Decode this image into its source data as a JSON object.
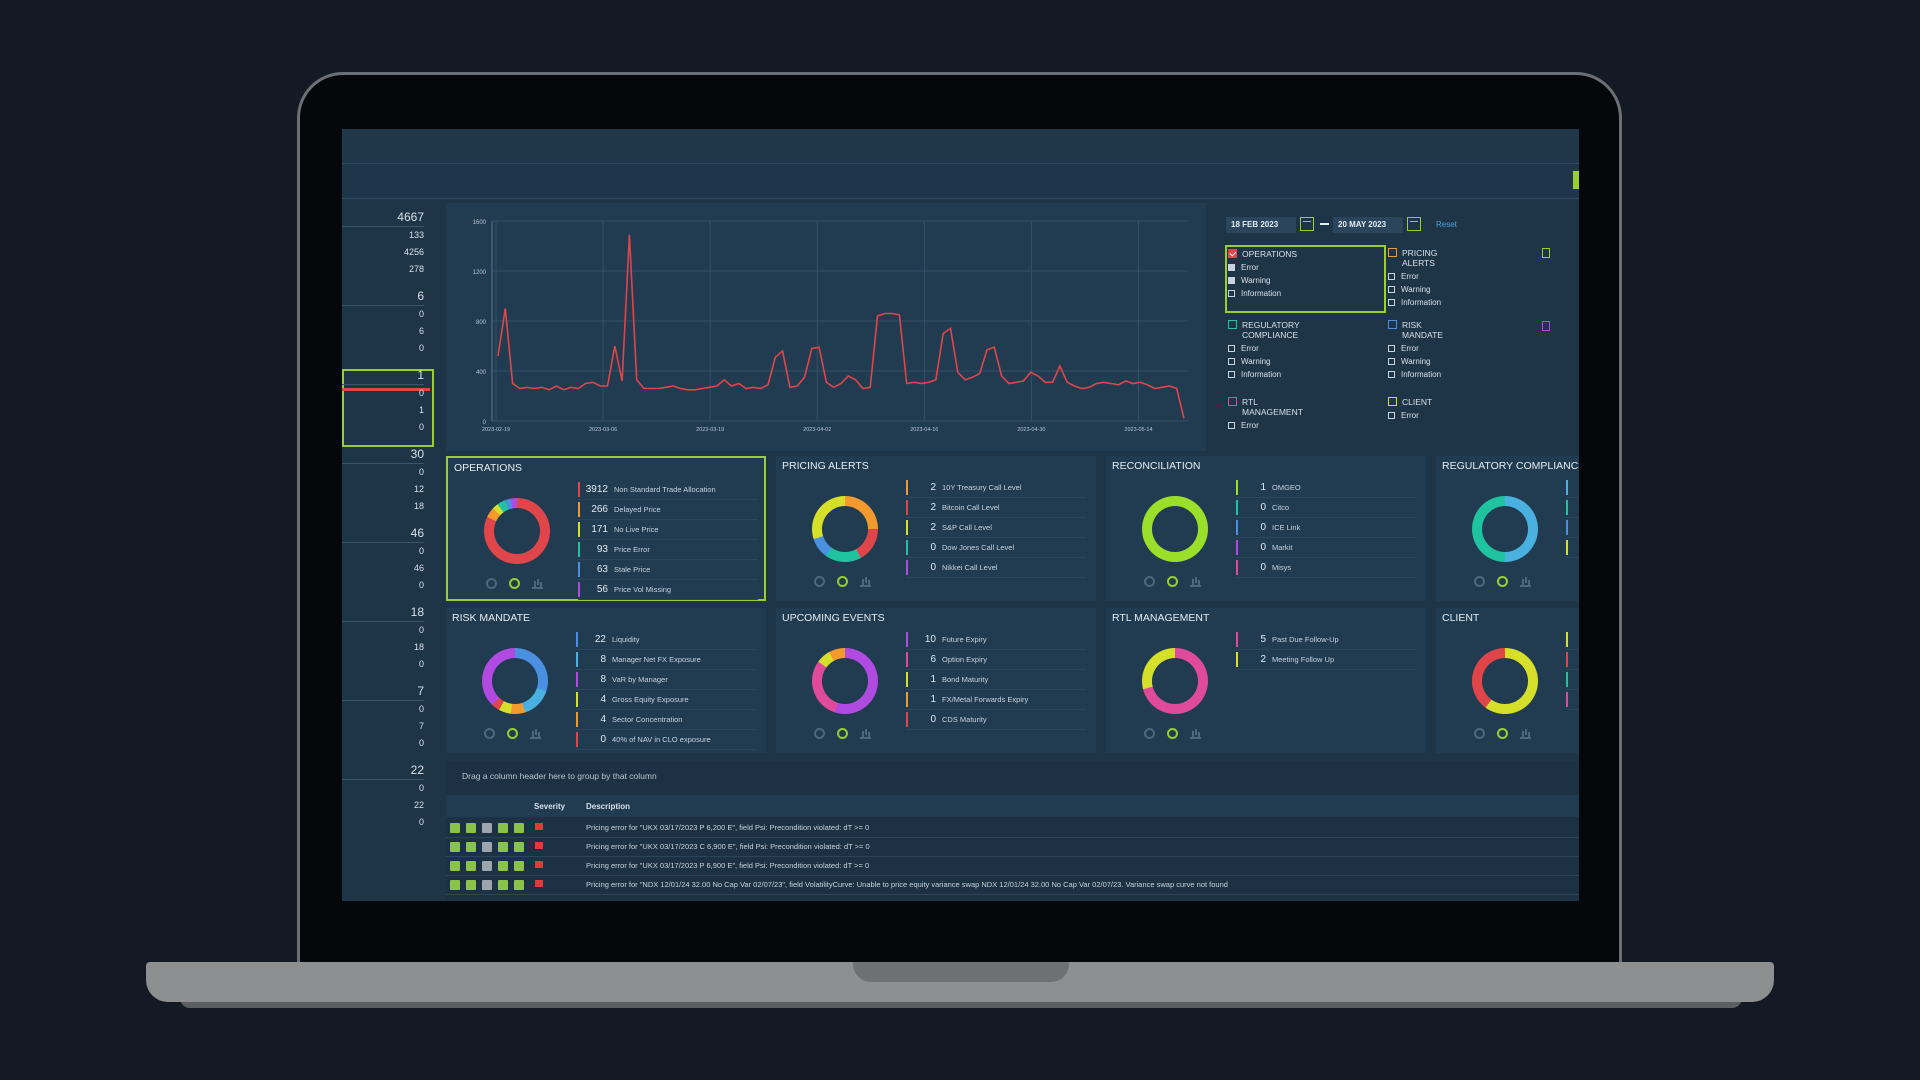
{
  "sidebar": {
    "groups": [
      {
        "head": "4667",
        "values": [
          "133",
          "4256",
          "278"
        ]
      },
      {
        "head": "6",
        "values": [
          "0",
          "6",
          "0"
        ]
      },
      {
        "head": "1",
        "values": [
          "0",
          "1",
          "0"
        ]
      },
      {
        "head": "30",
        "values": [
          "0",
          "12",
          "18"
        ]
      },
      {
        "head": "46",
        "values": [
          "0",
          "46",
          "0"
        ]
      },
      {
        "head": "18",
        "values": [
          "0",
          "18",
          "0"
        ]
      },
      {
        "head": "7",
        "values": [
          "0",
          "7",
          "0"
        ]
      },
      {
        "head": "22",
        "values": [
          "0",
          "22",
          "0"
        ]
      }
    ]
  },
  "date_range": {
    "from": "18 FEB 2023",
    "to": "20 MAY 2023",
    "reset_label": "Reset"
  },
  "chart_data": {
    "type": "line",
    "y_ticks": [
      "1600",
      "1200",
      "800",
      "400",
      "0"
    ],
    "x_ticks": [
      "2023-02-19",
      "2023-03-06",
      "2023-03-19",
      "2023-04-02",
      "2023-04-16",
      "2023-04-30",
      "2023-05-14"
    ],
    "ylim": [
      0,
      1600
    ],
    "color": "#e0454a",
    "values": [
      520,
      900,
      300,
      260,
      270,
      260,
      270,
      250,
      280,
      250,
      270,
      260,
      300,
      310,
      280,
      280,
      600,
      320,
      1490,
      330,
      260,
      260,
      260,
      270,
      280,
      260,
      250,
      250,
      260,
      270,
      280,
      330,
      280,
      300,
      260,
      270,
      260,
      290,
      510,
      560,
      270,
      280,
      350,
      580,
      590,
      310,
      270,
      300,
      360,
      330,
      260,
      270,
      840,
      860,
      860,
      850,
      300,
      310,
      300,
      310,
      330,
      700,
      740,
      390,
      330,
      350,
      380,
      570,
      590,
      360,
      300,
      310,
      320,
      390,
      360,
      310,
      310,
      440,
      310,
      280,
      260,
      270,
      300,
      310,
      300,
      290,
      320,
      300,
      310,
      290,
      260,
      270,
      280,
      260,
      20
    ]
  },
  "categories": [
    {
      "title": "OPERATIONS",
      "color": "#e0454a",
      "checked": true,
      "items": [
        {
          "label": "Error",
          "on": true
        },
        {
          "label": "Warning",
          "on": true
        },
        {
          "label": "Information",
          "on": false
        }
      ]
    },
    {
      "title": "PRICING ALERTS",
      "color": "#f29a2e",
      "checked": false,
      "items": [
        {
          "label": "Error",
          "on": false
        },
        {
          "label": "Warning",
          "on": false
        },
        {
          "label": "Information",
          "on": false
        }
      ]
    },
    {
      "title": "REGULATORY COMPLIANCE",
      "color": "#20c3a0",
      "checked": false,
      "items": [
        {
          "label": "Error",
          "on": false
        },
        {
          "label": "Warning",
          "on": false
        },
        {
          "label": "Information",
          "on": false
        }
      ]
    },
    {
      "title": "RISK MANDATE",
      "color": "#4a8fe0",
      "checked": false,
      "items": [
        {
          "label": "Error",
          "on": false
        },
        {
          "label": "Warning",
          "on": false
        },
        {
          "label": "Information",
          "on": false
        }
      ]
    },
    {
      "title": "RTL MANAGEMENT",
      "color": "#e04a9a",
      "checked": false,
      "items": [
        {
          "label": "Error",
          "on": false
        }
      ]
    },
    {
      "title": "CLIENT",
      "color": "#d6e02a",
      "checked": false,
      "items": [
        {
          "label": "Error",
          "on": false
        }
      ]
    }
  ],
  "cards": [
    {
      "title": "OPERATIONS",
      "donut": "conic-gradient(#e0454a 0 82%, #f29a2e 82% 87%, #d6e02a 87% 90%, #20c3a0 90% 94%, #4a8fe0 94% 97%, #b04ae0 97% 100%)",
      "metrics": [
        {
          "v": "3912",
          "l": "Non Standard Trade Allocation",
          "c": "#e0454a"
        },
        {
          "v": "266",
          "l": "Delayed Price",
          "c": "#f29a2e"
        },
        {
          "v": "171",
          "l": "No Live Price",
          "c": "#d6e02a"
        },
        {
          "v": "93",
          "l": "Price Error",
          "c": "#20c3a0"
        },
        {
          "v": "63",
          "l": "Stale Price",
          "c": "#4a8fe0"
        },
        {
          "v": "56",
          "l": "Price Vol Missing",
          "c": "#b04ae0"
        }
      ]
    },
    {
      "title": "PRICING ALERTS",
      "donut": "conic-gradient(#f29a2e 0 25%, #e0454a 25% 42%, #20c3a0 42% 60%, #4a8fe0 60% 70%, #d6e02a 70% 100%)",
      "metrics": [
        {
          "v": "2",
          "l": "10Y Treasury Call Level",
          "c": "#f29a2e"
        },
        {
          "v": "2",
          "l": "Bitcoin Call Level",
          "c": "#e0454a"
        },
        {
          "v": "2",
          "l": "S&P Call Level",
          "c": "#d6e02a"
        },
        {
          "v": "0",
          "l": "Dow Jones Call Level",
          "c": "#20c3a0"
        },
        {
          "v": "0",
          "l": "Nikkei Call Level",
          "c": "#b04ae0"
        }
      ]
    },
    {
      "title": "RECONCILIATION",
      "donut": "conic-gradient(#9ae02a 0 100%)",
      "metrics": [
        {
          "v": "1",
          "l": "OMGEO",
          "c": "#9ae02a"
        },
        {
          "v": "0",
          "l": "Citco",
          "c": "#20c3a0"
        },
        {
          "v": "0",
          "l": "ICE Link",
          "c": "#4a8fe0"
        },
        {
          "v": "0",
          "l": "Markit",
          "c": "#b04ae0"
        },
        {
          "v": "0",
          "l": "Misys",
          "c": "#e04a9a"
        }
      ]
    },
    {
      "title": "REGULATORY COMPLIANCE",
      "donut": "conic-gradient(#4ab0e0 0 50%, #20c3a0 50% 100%)",
      "metrics": [
        {
          "v": "",
          "l": "",
          "c": "#4ab0e0"
        },
        {
          "v": "",
          "l": "",
          "c": "#20c3a0"
        },
        {
          "v": "",
          "l": "",
          "c": "#4a8fe0"
        },
        {
          "v": "",
          "l": "",
          "c": "#d6e02a"
        }
      ]
    },
    {
      "title": "RISK MANDATE",
      "donut": "conic-gradient(#4a8fe0 0 30%, #4ab0e0 30% 45%, #f29a2e 45% 52%, #d6e02a 52% 58%, #e0454a 58% 62%, #b04ae0 62% 100%)",
      "metrics": [
        {
          "v": "22",
          "l": "Liquidity",
          "c": "#4a8fe0"
        },
        {
          "v": "8",
          "l": "Manager Net FX Exposure",
          "c": "#4ab0e0"
        },
        {
          "v": "8",
          "l": "VaR by Manager",
          "c": "#b04ae0"
        },
        {
          "v": "4",
          "l": "Gross Equity Exposure",
          "c": "#d6e02a"
        },
        {
          "v": "4",
          "l": "Sector Concentration",
          "c": "#f29a2e"
        },
        {
          "v": "0",
          "l": "40% of NAV in CLO exposure",
          "c": "#e0454a"
        }
      ]
    },
    {
      "title": "UPCOMING EVENTS",
      "donut": "conic-gradient(#b04ae0 0 55%, #e04a9a 55% 85%, #d6e02a 85% 92%, #f29a2e 92% 100%)",
      "metrics": [
        {
          "v": "10",
          "l": "Future Expiry",
          "c": "#b04ae0"
        },
        {
          "v": "6",
          "l": "Option Expiry",
          "c": "#e04a9a"
        },
        {
          "v": "1",
          "l": "Bond Maturity",
          "c": "#d6e02a"
        },
        {
          "v": "1",
          "l": "FX/Metal Forwards Expiry",
          "c": "#f29a2e"
        },
        {
          "v": "0",
          "l": "CDS Maturity",
          "c": "#e0454a"
        }
      ]
    },
    {
      "title": "RTL MANAGEMENT",
      "donut": "conic-gradient(#e04a9a 0 71%, #d6e02a 71% 100%)",
      "metrics": [
        {
          "v": "5",
          "l": "Past Due Follow-Up",
          "c": "#e04a9a"
        },
        {
          "v": "2",
          "l": "Meeting Follow Up",
          "c": "#d6e02a"
        }
      ]
    },
    {
      "title": "CLIENT",
      "donut": "conic-gradient(#d6e02a 0 60%, #e0454a 60% 100%)",
      "metrics": [
        {
          "v": "",
          "l": "",
          "c": "#d6e02a"
        },
        {
          "v": "",
          "l": "",
          "c": "#e0454a"
        },
        {
          "v": "",
          "l": "",
          "c": "#20c3a0"
        },
        {
          "v": "",
          "l": "",
          "c": "#e04a9a"
        }
      ]
    }
  ],
  "grid": {
    "group_hint": "Drag a column header here to group by that column",
    "columns": {
      "severity": "Severity",
      "description": "Description"
    },
    "rows": [
      {
        "description": "Pricing error for \"UKX 03/17/2023 P 6,200 E\", field Psi: Precondition violated: dT >= 0"
      },
      {
        "description": "Pricing error for \"UKX 03/17/2023 C 6,900 E\", field Psi: Precondition violated: dT >= 0"
      },
      {
        "description": "Pricing error for \"UKX 03/17/2023 P 6,900 E\", field Psi: Precondition violated: dT >= 0"
      },
      {
        "description": "Pricing error for \"NDX 12/01/24 32.00 No Cap Var 02/07/23\", field VolatilityCurve: Unable to price equity variance swap NDX 12/01/24 32.00 No Cap Var 02/07/23. Variance swap curve not found"
      }
    ]
  }
}
